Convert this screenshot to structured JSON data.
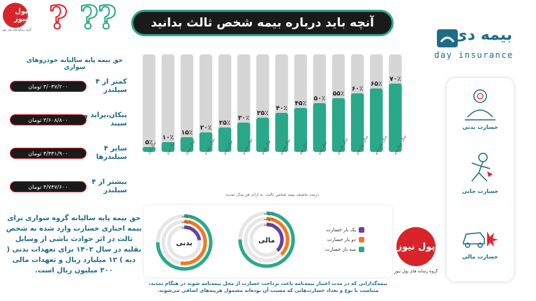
{
  "header": {
    "title": "آنچه باید درباره بیمه شخص ثالث بدانید",
    "logo_text": "پول نیوز",
    "logo_caption": "گروه رسانه های پول نیوز",
    "brand_fa": "بیمه دی",
    "brand_en": "day insurance"
  },
  "colors": {
    "teal": "#2aa88a",
    "dark": "#1a1a1a",
    "red": "#e2232a",
    "blue_text": "#1f6a88",
    "orange": "#f07a1e",
    "purple": "#6a3fa0",
    "grey_bar": "#d6d6d6"
  },
  "prices": {
    "heading": "حق بیمه پایه سالیانه خودروهای سواری",
    "items": [
      {
        "label": "کمتر از ۴ سیلندر",
        "value": "۳/۰۴۷/۲۰۰ تومان"
      },
      {
        "label": "پیکان،پراید و سپند",
        "value": "۳/۶۰۸/۸۰۰ تومان"
      },
      {
        "label": "سایر ۴ سیلندرها",
        "value": "۴/۴۴۱/۹۰۰ تومان"
      },
      {
        "label": "بیشتر از ۴ سیلندر",
        "value": "۴/۷۴۷/۶۰۰ تومان"
      }
    ]
  },
  "description": "حق بیمه پایه سالیانه گروه سواری برای بیمه اجباری خسارت وارد شده به شخص ثالث در اثر حوادث ناشی از وسایل نقلیه در سال ۱۴۰۲ برای تعهدات بدنی ( دیه ) ۱۲ میلیارد ریال و تعهدات مالی ۳۰۰ میلیون ریال است.",
  "side_panel": {
    "items": [
      {
        "label": "خسارت بدنی",
        "icon": "bodily-injury-icon"
      },
      {
        "label": "خسارت جانی",
        "icon": "life-damage-icon"
      },
      {
        "label": "خسارت مالی",
        "icon": "car-crash-icon"
      }
    ]
  },
  "chart_data": {
    "type": "bar",
    "categories": [
      "سال اول",
      "سال دوم",
      "سال سوم",
      "سال چهارم",
      "سال پنجم",
      "سال ششم",
      "سال هفتم",
      "سال هشتم",
      "سال نهم",
      "سال دهم",
      "سال یازدهم",
      "سال دوازدهم",
      "سال سیزدهم",
      "سال چهاردهم"
    ],
    "values": [
      5,
      10,
      15,
      20,
      25,
      30,
      35,
      40,
      45,
      50,
      55,
      60,
      65,
      70
    ],
    "value_labels": [
      "۵٪",
      "۱۰٪",
      "۱۵٪",
      "۲۰٪",
      "۲۵٪",
      "۳۰٪",
      "۳۵٪",
      "۴۰٪",
      "۴۵٪",
      "۵۰٪",
      "۵۵٪",
      "۶۰٪",
      "۶۵٪",
      "۷۰٪"
    ],
    "ylim": [
      0,
      100
    ],
    "caption": "درصد تخفیف بیمه شخص ثالث، به ازای هر سال تمدید",
    "grid": false
  },
  "rings": {
    "legend": [
      {
        "label": "یک بار خسارت",
        "color": "#6a3fa0"
      },
      {
        "label": "دو بار خسارت",
        "color": "#f07a1e"
      },
      {
        "label": "سه بار خسارت",
        "color": "#2aa88a"
      }
    ],
    "bodily": {
      "label": "بدنی",
      "ticks": [
        "۱۰۰ واحد",
        "۷۰ واحد",
        "۳۰ واحد"
      ],
      "values": [
        30,
        70,
        100
      ]
    },
    "financial": {
      "label": "مالی",
      "ticks": [
        "۴۰ واحد",
        "۲۰ واحد",
        "۲۰ واحد"
      ],
      "values": [
        20,
        20,
        40
      ]
    }
  },
  "note": "بیمه‌گذارانی که در مدت اعتبار بیمه‌نامه باعث پرداخت خسارت از محل بیمه‌نامه شوند در هنگام تمدید، متناسب با نوع و تعداد خسارت‌هایی که مسبب آن بوده‌اند مشمول هزینه‌های اضافی می‌شوند."
}
